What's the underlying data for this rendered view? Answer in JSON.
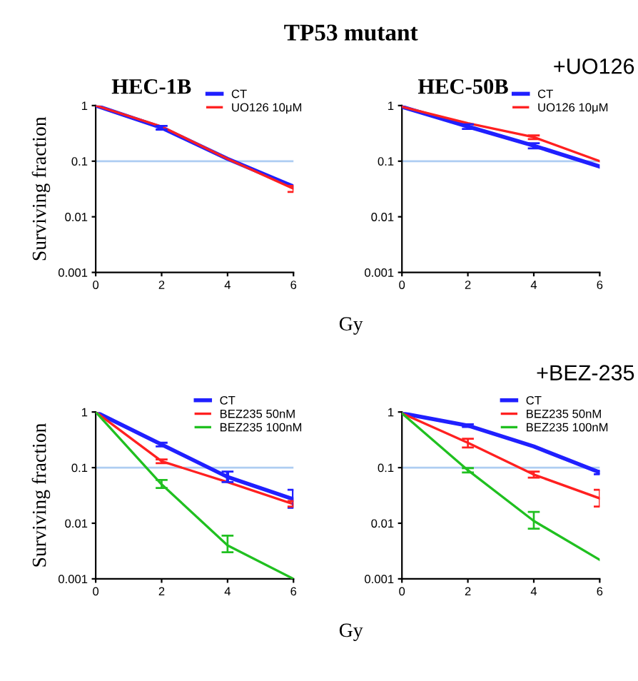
{
  "chart_data": [
    {
      "type": "line",
      "title": "HEC-1B",
      "ylabel": "Surviving fraction",
      "xlabel": "Gy",
      "annotations": [
        "TP53 mutant"
      ],
      "x": [
        0,
        2,
        4,
        6
      ],
      "log": "y",
      "xlim": [
        0,
        6
      ],
      "xticks": [
        0,
        2,
        4,
        6
      ],
      "ylim": [
        0.001,
        1
      ],
      "yticks": [
        0.001,
        0.01,
        0.1,
        1
      ],
      "legend": "top right",
      "marker": "none",
      "ref_lines": [
        {
          "axis": "y",
          "value": 0.1,
          "color": "#aecdf2"
        }
      ],
      "series": [
        {
          "name": "CT",
          "color": "#2020ff",
          "values": [
            1,
            0.4,
            0.11,
            0.035
          ],
          "errors": [
            null,
            [
              0.37,
              0.43
            ],
            null,
            null
          ]
        },
        {
          "name": "UO126 10μM",
          "color": "#ff2020",
          "values": [
            1,
            0.42,
            0.11,
            0.032
          ],
          "errors": [
            null,
            null,
            null,
            [
              0.028,
              0.036
            ]
          ]
        }
      ]
    },
    {
      "type": "line",
      "title": "HEC-50B",
      "annotations": [
        "+UO126"
      ],
      "x": [
        0,
        2,
        4,
        6
      ],
      "log": "y",
      "xlim": [
        0,
        6
      ],
      "xticks": [
        0,
        2,
        4,
        6
      ],
      "ylim": [
        0.001,
        1
      ],
      "yticks": [
        0.001,
        0.01,
        0.1,
        1
      ],
      "legend": "top right",
      "marker": "none",
      "ref_lines": [
        {
          "axis": "y",
          "value": 0.1,
          "color": "#aecdf2"
        }
      ],
      "series": [
        {
          "name": "CT",
          "color": "#2020ff",
          "values": [
            0.95,
            0.42,
            0.19,
            0.08
          ],
          "errors": [
            null,
            [
              0.38,
              0.46
            ],
            [
              0.17,
              0.21
            ],
            null
          ]
        },
        {
          "name": "UO126 10μM",
          "color": "#ff2020",
          "values": [
            0.95,
            0.48,
            0.27,
            0.1
          ],
          "errors": [
            null,
            null,
            [
              0.25,
              0.29
            ],
            null
          ]
        }
      ]
    },
    {
      "type": "line",
      "ylabel": "Surviving fraction",
      "xlabel": "Gy",
      "x": [
        0,
        2,
        4,
        6
      ],
      "log": "y",
      "xlim": [
        0,
        6
      ],
      "xticks": [
        0,
        2,
        4,
        6
      ],
      "ylim": [
        0.001,
        1
      ],
      "yticks": [
        0.001,
        0.01,
        0.1,
        1
      ],
      "legend": "top right",
      "marker": "none",
      "ref_lines": [
        {
          "axis": "y",
          "value": 0.1,
          "color": "#aecdf2"
        }
      ],
      "series": [
        {
          "name": "CT",
          "color": "#2020ff",
          "values": [
            1,
            0.26,
            0.068,
            0.027
          ],
          "errors": [
            null,
            [
              0.24,
              0.28
            ],
            [
              0.055,
              0.085
            ],
            [
              0.019,
              0.04
            ]
          ]
        },
        {
          "name": "BEZ235 50nM",
          "color": "#ff2020",
          "values": [
            1,
            0.13,
            0.055,
            0.022
          ],
          "errors": [
            null,
            [
              0.12,
              0.14
            ],
            null,
            [
              0.02,
              0.025
            ]
          ]
        },
        {
          "name": "BEZ235 100nM",
          "color": "#20c020",
          "values": [
            1,
            0.05,
            0.004,
            0.001
          ],
          "errors": [
            null,
            [
              0.043,
              0.06
            ],
            [
              0.003,
              0.006
            ],
            null
          ]
        }
      ]
    },
    {
      "type": "line",
      "annotations": [
        "+BEZ-235"
      ],
      "x": [
        0,
        2,
        4,
        6
      ],
      "log": "y",
      "xlim": [
        0,
        6
      ],
      "xticks": [
        0,
        2,
        4,
        6
      ],
      "ylim": [
        0.001,
        1
      ],
      "yticks": [
        0.001,
        0.01,
        0.1,
        1
      ],
      "legend": "top right",
      "marker": "none",
      "ref_lines": [
        {
          "axis": "y",
          "value": 0.1,
          "color": "#aecdf2"
        }
      ],
      "series": [
        {
          "name": "CT",
          "color": "#2020ff",
          "values": [
            0.95,
            0.57,
            0.24,
            0.082
          ],
          "errors": [
            null,
            [
              0.54,
              0.6
            ],
            null,
            [
              0.076,
              0.088
            ]
          ]
        },
        {
          "name": "BEZ235 50nM",
          "color": "#ff2020",
          "values": [
            0.95,
            0.28,
            0.075,
            0.028
          ],
          "errors": [
            null,
            [
              0.23,
              0.33
            ],
            [
              0.066,
              0.085
            ],
            [
              0.02,
              0.04
            ]
          ]
        },
        {
          "name": "BEZ235 100nM",
          "color": "#20c020",
          "values": [
            0.95,
            0.09,
            0.011,
            0.0022
          ],
          "errors": [
            null,
            [
              0.082,
              0.098
            ],
            [
              0.008,
              0.016
            ],
            null
          ]
        }
      ]
    }
  ]
}
